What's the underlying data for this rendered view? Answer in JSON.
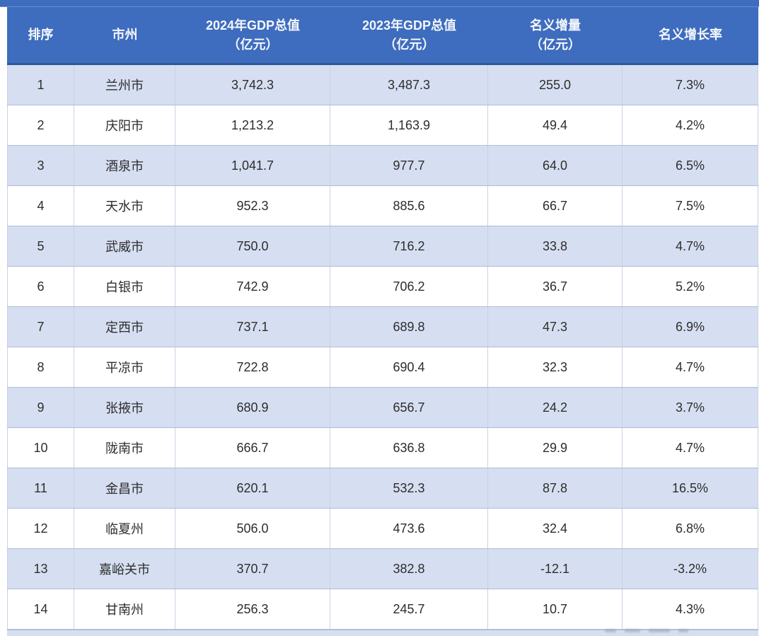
{
  "colors": {
    "header_bg": "#3E6CBE",
    "header_text": "#F4F7FC",
    "header_border": "#2F5699",
    "row_alt_bg": "#D6DFF1",
    "row_bg": "#FFFFFF",
    "grid_line": "#C9D2E3",
    "row_border": "#AFBDD8",
    "cell_text": "#2D2D2D"
  },
  "chart_data": {
    "type": "table",
    "columns": [
      {
        "label": "排序",
        "sub": ""
      },
      {
        "label": "市州",
        "sub": ""
      },
      {
        "label": "2024年GDP总值",
        "sub": "（亿元）"
      },
      {
        "label": "2023年GDP总值",
        "sub": "（亿元）"
      },
      {
        "label": "名义增量",
        "sub": "（亿元）"
      },
      {
        "label": "名义增长率",
        "sub": ""
      }
    ],
    "rows": [
      [
        "1",
        "兰州市",
        "3,742.3",
        "3,487.3",
        "255.0",
        "7.3%"
      ],
      [
        "2",
        "庆阳市",
        "1,213.2",
        "1,163.9",
        "49.4",
        "4.2%"
      ],
      [
        "3",
        "酒泉市",
        "1,041.7",
        "977.7",
        "64.0",
        "6.5%"
      ],
      [
        "4",
        "天水市",
        "952.3",
        "885.6",
        "66.7",
        "7.5%"
      ],
      [
        "5",
        "武威市",
        "750.0",
        "716.2",
        "33.8",
        "4.7%"
      ],
      [
        "6",
        "白银市",
        "742.9",
        "706.2",
        "36.7",
        "5.2%"
      ],
      [
        "7",
        "定西市",
        "737.1",
        "689.8",
        "47.3",
        "6.9%"
      ],
      [
        "8",
        "平凉市",
        "722.8",
        "690.4",
        "32.3",
        "4.7%"
      ],
      [
        "9",
        "张掖市",
        "680.9",
        "656.7",
        "24.2",
        "3.7%"
      ],
      [
        "10",
        "陇南市",
        "666.7",
        "636.8",
        "29.9",
        "4.7%"
      ],
      [
        "11",
        "金昌市",
        "620.1",
        "532.3",
        "87.8",
        "16.5%"
      ],
      [
        "12",
        "临夏州",
        "506.0",
        "473.6",
        "32.4",
        "6.8%"
      ],
      [
        "13",
        "嘉峪关市",
        "370.7",
        "382.8",
        "-12.1",
        "-3.2%"
      ],
      [
        "14",
        "甘南州",
        "256.3",
        "245.7",
        "10.7",
        "4.3%"
      ]
    ]
  }
}
